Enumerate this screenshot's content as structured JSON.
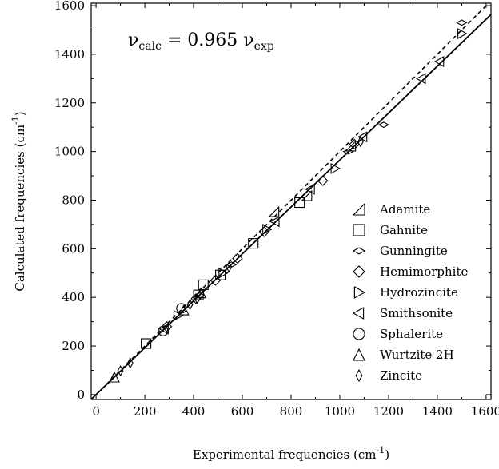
{
  "chart_data": {
    "type": "scatter",
    "title": "",
    "equation": {
      "prefix": "ν",
      "sub1": "calc",
      "middle": " = 0.965 ν",
      "sub2": "exp"
    },
    "xlabel": {
      "text": "Experimental frequencies (cm",
      "sup": "-1",
      "close": ")"
    },
    "ylabel": {
      "text": "Calculated frequencies (cm",
      "sup": "-1",
      "close": ")"
    },
    "xlim": [
      -20,
      1620
    ],
    "ylim": [
      -20,
      1610
    ],
    "xticks": [
      0,
      200,
      400,
      600,
      800,
      1000,
      1200,
      1400,
      1600
    ],
    "yticks": [
      0,
      200,
      400,
      600,
      800,
      1000,
      1200,
      1400,
      1600
    ],
    "grid": false,
    "legend_position": "bottom-right",
    "lines": [
      {
        "style": "solid",
        "slope": 0.965
      },
      {
        "style": "dashed",
        "slope": 1.0
      }
    ],
    "series": [
      {
        "name": "Adamite",
        "marker": "triangle-left-corner",
        "points": [
          [
            730,
            752
          ],
          [
            865,
            818
          ],
          [
            1045,
            1022
          ]
        ]
      },
      {
        "name": "Gahnite",
        "marker": "square",
        "points": [
          [
            205,
            210
          ],
          [
            420,
            410
          ],
          [
            440,
            452
          ],
          [
            510,
            492
          ],
          [
            645,
            622
          ],
          [
            835,
            790
          ]
        ]
      },
      {
        "name": "Gunningite",
        "marker": "flat-diamond",
        "points": [
          [
            425,
            408
          ],
          [
            555,
            535
          ],
          [
            1035,
            1000
          ],
          [
            1180,
            1110
          ],
          [
            1500,
            1530
          ]
        ]
      },
      {
        "name": "Hemimorphite",
        "marker": "diamond",
        "points": [
          [
            290,
            280
          ],
          [
            410,
            395
          ],
          [
            490,
            470
          ],
          [
            580,
            560
          ],
          [
            690,
            670
          ],
          [
            930,
            880
          ],
          [
            1060,
            1030
          ]
        ]
      },
      {
        "name": "Hydrozincite",
        "marker": "triangle-right",
        "points": [
          [
            335,
            325
          ],
          [
            520,
            500
          ],
          [
            700,
            680
          ],
          [
            980,
            930
          ],
          [
            1500,
            1485
          ]
        ]
      },
      {
        "name": "Smithsonite",
        "marker": "triangle-left",
        "points": [
          [
            280,
            270
          ],
          [
            735,
            712
          ],
          [
            880,
            845
          ],
          [
            1095,
            1060
          ],
          [
            1335,
            1300
          ],
          [
            1410,
            1370
          ]
        ]
      },
      {
        "name": "Sphalerite",
        "marker": "circle",
        "points": [
          [
            275,
            262
          ],
          [
            350,
            355
          ]
        ]
      },
      {
        "name": "Wurtzite 2H",
        "marker": "triangle-up",
        "points": [
          [
            75,
            72
          ],
          [
            360,
            348
          ],
          [
            430,
            418
          ]
        ]
      },
      {
        "name": "Zincite",
        "marker": "thin-diamond",
        "points": [
          [
            100,
            98
          ],
          [
            140,
            130
          ],
          [
            385,
            370
          ],
          [
            415,
            395
          ],
          [
            545,
            525
          ],
          [
            1085,
            1040
          ]
        ]
      }
    ]
  }
}
